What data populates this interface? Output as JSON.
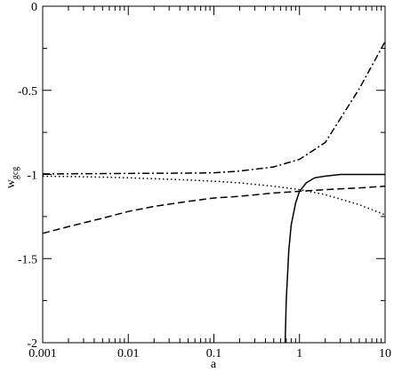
{
  "chart_data": {
    "type": "line",
    "x_label": "a",
    "y_label": "w",
    "y_label_sub": "gcg",
    "xscale": "log",
    "xlim": [
      0.001,
      10
    ],
    "xticks": [
      0.001,
      0.01,
      0.1,
      1,
      10
    ],
    "xminorticks": [
      0.002,
      0.003,
      0.004,
      0.005,
      0.006,
      0.007,
      0.008,
      0.009,
      0.02,
      0.03,
      0.04,
      0.05,
      0.06,
      0.07,
      0.08,
      0.09,
      0.2,
      0.3,
      0.4,
      0.5,
      0.6,
      0.7,
      0.8,
      0.9,
      2,
      3,
      4,
      5,
      6,
      7,
      8,
      9
    ],
    "ylim": [
      -2,
      0
    ],
    "yticks": [
      -2,
      -1.5,
      -1,
      -0.5,
      0
    ],
    "yminorticks": [
      -1.75,
      -1.25,
      -0.75,
      -0.25
    ],
    "series": [
      {
        "style": "solid",
        "color": "#000000",
        "x": [
          0.68,
          0.7,
          0.75,
          0.8,
          0.9,
          1,
          1.2,
          1.5,
          2,
          3,
          5,
          10
        ],
        "values": [
          -2,
          -1.75,
          -1.45,
          -1.3,
          -1.17,
          -1.1,
          -1.05,
          -1.02,
          -1.01,
          -1.0,
          -1.0,
          -1.0
        ]
      },
      {
        "style": "dashed",
        "color": "#000000",
        "x": [
          0.001,
          0.002,
          0.005,
          0.01,
          0.02,
          0.05,
          0.1,
          0.2,
          0.5,
          1,
          2,
          5,
          10
        ],
        "values": [
          -1.35,
          -1.31,
          -1.26,
          -1.22,
          -1.19,
          -1.16,
          -1.14,
          -1.13,
          -1.11,
          -1.1,
          -1.09,
          -1.08,
          -1.07
        ]
      },
      {
        "style": "dotted",
        "color": "#000000",
        "x": [
          0.001,
          0.002,
          0.005,
          0.01,
          0.02,
          0.05,
          0.1,
          0.2,
          0.5,
          1,
          2,
          5,
          10
        ],
        "values": [
          -1.01,
          -1.012,
          -1.016,
          -1.02,
          -1.025,
          -1.033,
          -1.04,
          -1.05,
          -1.07,
          -1.09,
          -1.12,
          -1.18,
          -1.24
        ]
      },
      {
        "style": "dashdot",
        "color": "#000000",
        "x": [
          0.001,
          0.002,
          0.005,
          0.01,
          0.02,
          0.05,
          0.1,
          0.2,
          0.5,
          1,
          2,
          5,
          10
        ],
        "values": [
          -0.997,
          -0.996,
          -0.995,
          -0.994,
          -0.993,
          -0.992,
          -0.99,
          -0.98,
          -0.955,
          -0.91,
          -0.81,
          -0.49,
          -0.21
        ]
      }
    ]
  }
}
